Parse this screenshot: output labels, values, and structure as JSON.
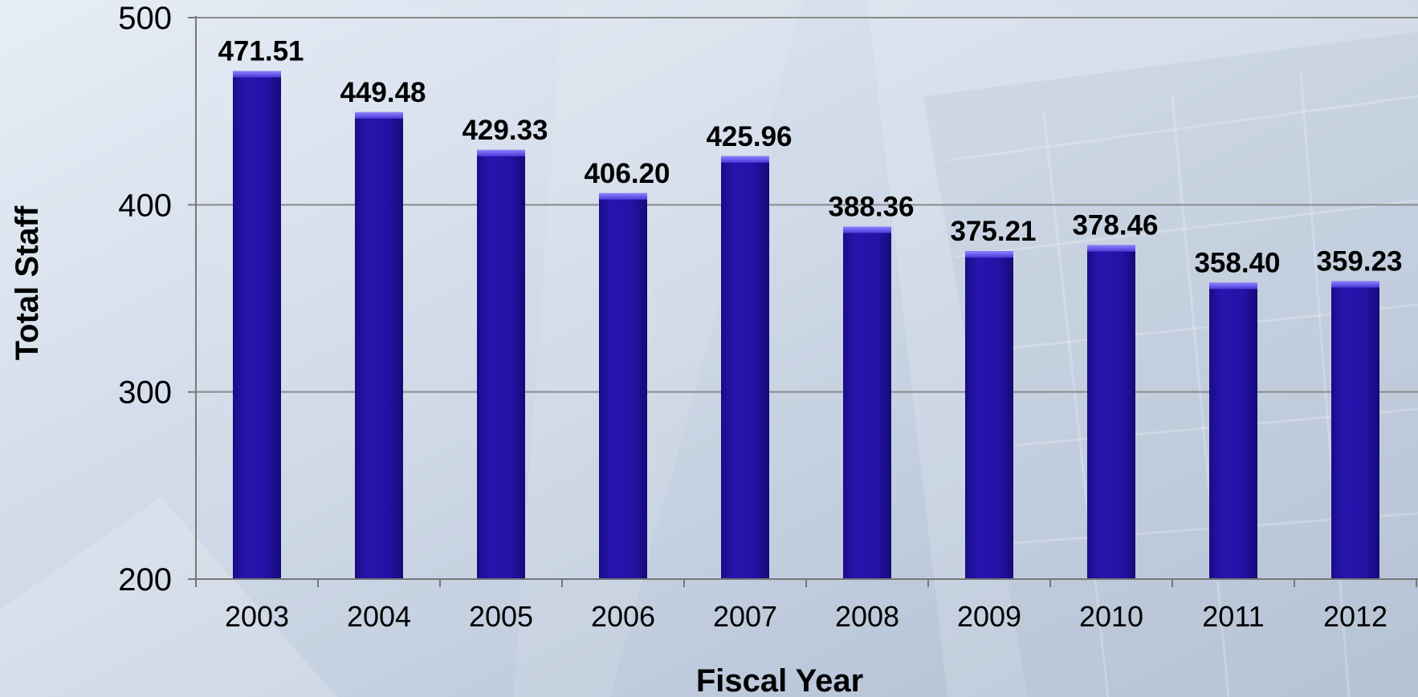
{
  "chart_data": {
    "type": "bar",
    "title": "",
    "xlabel": "Fiscal Year",
    "ylabel": "Total Staff",
    "ylim": [
      200,
      500
    ],
    "yticks": [
      200,
      300,
      400,
      500
    ],
    "grid": true,
    "legend": "none",
    "categories": [
      "2003",
      "2004",
      "2005",
      "2006",
      "2007",
      "2008",
      "2009",
      "2010",
      "2011",
      "2012"
    ],
    "values": [
      471.51,
      449.48,
      429.33,
      406.2,
      425.96,
      388.36,
      375.21,
      378.46,
      358.4,
      359.23
    ],
    "data_labels": [
      "471.51",
      "449.48",
      "429.33",
      "406.20",
      "425.96",
      "388.36",
      "375.21",
      "378.46",
      "358.40",
      "359.23"
    ],
    "colors": {
      "bar": "#2412a6",
      "bar_top": "#6b5cf0",
      "axis": "#777777",
      "grid": "#8a8a8a",
      "text": "#000000",
      "background": "#cdd8e6"
    }
  }
}
